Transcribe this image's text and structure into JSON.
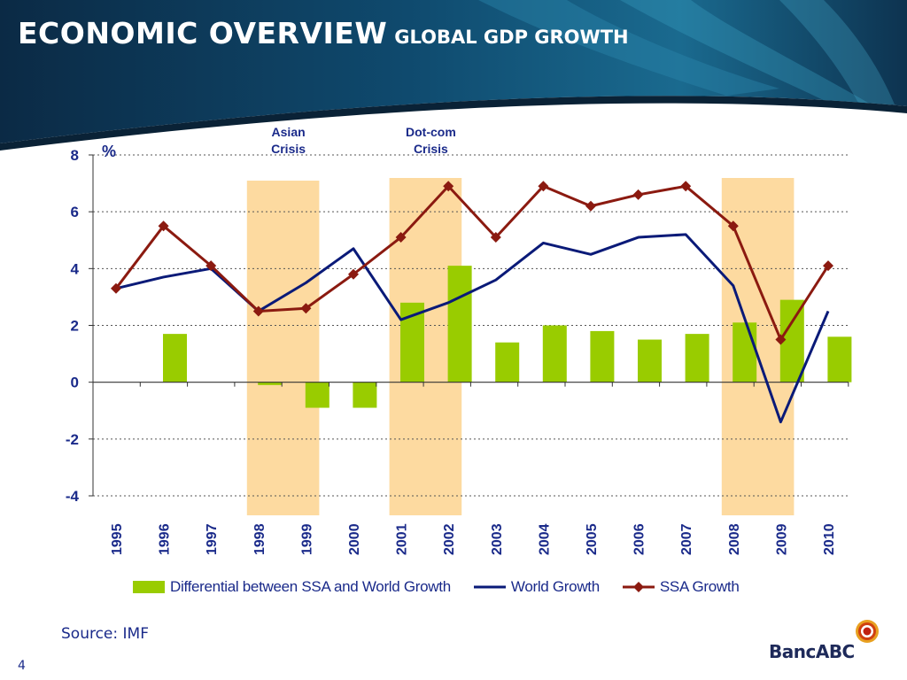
{
  "header": {
    "title": "ECONOMIC OVERVIEW",
    "subtitle": "GLOBAL GDP GROWTH"
  },
  "colors": {
    "header_dark": "#0b2a45",
    "header_mid": "#1a6a8f",
    "bar": "#99cc00",
    "crisis_band": "#fdd696",
    "world_line": "#0a1a78",
    "ssa_line": "#8b1a10",
    "text": "#1a2a8a"
  },
  "chart_data": {
    "type": "bar",
    "ylabel": "%",
    "ylim": [
      -4,
      8
    ],
    "yticks": [
      -4,
      -2,
      0,
      2,
      4,
      6,
      8
    ],
    "grid": true,
    "categories": [
      "1995",
      "1996",
      "1997",
      "1998",
      "1999",
      "2000",
      "2001",
      "2002",
      "2003",
      "2004",
      "2005",
      "2006",
      "2007",
      "2008",
      "2009",
      "2010"
    ],
    "series": [
      {
        "name": "Differential between SSA and World Growth",
        "kind": "bar",
        "values": [
          0,
          1.7,
          0,
          -0.1,
          -0.9,
          -0.9,
          2.8,
          4.1,
          1.4,
          2.0,
          1.8,
          1.5,
          1.7,
          2.1,
          2.9,
          1.6
        ]
      },
      {
        "name": "World Growth",
        "kind": "line",
        "values": [
          3.3,
          3.7,
          4.0,
          2.5,
          3.5,
          4.7,
          2.2,
          2.8,
          3.6,
          4.9,
          4.5,
          5.1,
          5.2,
          3.4,
          -1.4,
          2.5
        ]
      },
      {
        "name": "SSA Growth",
        "kind": "line-marker",
        "values": [
          3.3,
          5.5,
          4.1,
          2.5,
          2.6,
          3.8,
          5.1,
          6.9,
          5.1,
          6.9,
          6.2,
          6.6,
          6.9,
          5.5,
          1.5,
          4.1
        ]
      }
    ],
    "annotations": [
      {
        "text_lines": [
          "Asian",
          "Crisis"
        ],
        "from": "1998",
        "to": "1999"
      },
      {
        "text_lines": [
          "Dot-com",
          "Crisis"
        ],
        "from": "2001",
        "to": "2002"
      },
      {
        "text_lines": [],
        "from": "2008",
        "to": "2009"
      }
    ],
    "legend_position": "bottom"
  },
  "footer": {
    "source": "Source: IMF",
    "page_number": "4",
    "logo_text": "BancABC"
  }
}
